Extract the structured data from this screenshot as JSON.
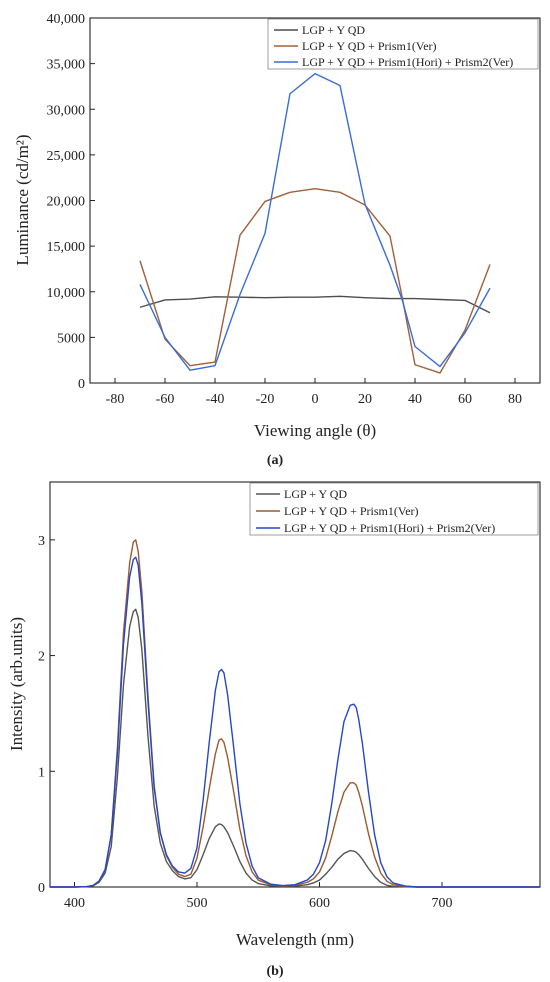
{
  "chart_data": [
    {
      "type": "line",
      "caption": "(a)",
      "xlabel": "Viewing angle (θ)",
      "ylabel": "Luminance (cd/m²)",
      "xlim": [
        -90,
        90
      ],
      "ylim": [
        0,
        40000
      ],
      "xticks": [
        -80,
        -60,
        -40,
        -20,
        0,
        20,
        40,
        60,
        80
      ],
      "yticks": [
        0,
        5000,
        10000,
        15000,
        20000,
        25000,
        30000,
        35000,
        40000
      ],
      "ytick_labels": [
        "0",
        "5000",
        "10,000",
        "15,000",
        "20,000",
        "25,000",
        "30,000",
        "35,000",
        "40,000"
      ],
      "legend_position": "top-right",
      "grid": false,
      "x": [
        -70,
        -60,
        -50,
        -40,
        -30,
        -20,
        -10,
        0,
        10,
        20,
        30,
        35,
        40,
        50,
        60,
        70
      ],
      "series": [
        {
          "name": "LGP + Y QD",
          "color": "#4d4d4d",
          "values": [
            8300,
            9100,
            9200,
            9450,
            9400,
            9350,
            9400,
            9400,
            9500,
            9350,
            9250,
            9250,
            9250,
            9150,
            9050,
            7700
          ]
        },
        {
          "name": "LGP + Y QD + Prism1(Ver)",
          "color": "#a0603a",
          "values": [
            13400,
            4800,
            1900,
            2300,
            16200,
            19900,
            20900,
            21300,
            20900,
            19500,
            16100,
            9200,
            2000,
            1100,
            5800,
            13000
          ]
        },
        {
          "name": "LGP + Y QD + Prism1(Hori) + Prism2(Ver)",
          "color": "#3a6cd6",
          "values": [
            10800,
            5000,
            1400,
            1900,
            9700,
            16400,
            31700,
            33900,
            32600,
            19600,
            12900,
            9000,
            4000,
            1800,
            5500,
            10400
          ]
        }
      ]
    },
    {
      "type": "line",
      "caption": "(b)",
      "xlabel": "Wavelength (nm)",
      "ylabel": "Intensity (arb.units)",
      "xlim": [
        380,
        780
      ],
      "ylim": [
        0,
        3.5
      ],
      "xticks": [
        400,
        500,
        600,
        700
      ],
      "yticks": [
        0,
        1,
        2,
        3
      ],
      "legend_position": "top-right",
      "grid": false,
      "x": [
        380,
        400,
        410,
        415,
        420,
        425,
        430,
        435,
        440,
        445,
        448,
        450,
        452,
        455,
        460,
        465,
        470,
        475,
        480,
        485,
        490,
        495,
        500,
        505,
        510,
        515,
        518,
        520,
        522,
        525,
        530,
        535,
        540,
        545,
        550,
        560,
        570,
        580,
        590,
        595,
        600,
        605,
        610,
        615,
        620,
        625,
        628,
        630,
        632,
        635,
        640,
        645,
        650,
        655,
        660,
        670,
        680,
        700,
        780
      ],
      "series": [
        {
          "name": "LGP + Y QD",
          "color": "#555555",
          "values": [
            0,
            0,
            0.003,
            0.01,
            0.04,
            0.12,
            0.35,
            0.95,
            1.75,
            2.25,
            2.38,
            2.4,
            2.33,
            2.05,
            1.3,
            0.7,
            0.38,
            0.22,
            0.14,
            0.09,
            0.07,
            0.08,
            0.15,
            0.28,
            0.42,
            0.52,
            0.545,
            0.54,
            0.52,
            0.47,
            0.35,
            0.22,
            0.12,
            0.06,
            0.03,
            0.01,
            0.005,
            0.008,
            0.02,
            0.035,
            0.06,
            0.11,
            0.17,
            0.24,
            0.29,
            0.315,
            0.31,
            0.3,
            0.28,
            0.24,
            0.16,
            0.09,
            0.04,
            0.015,
            0.006,
            0.002,
            0,
            0,
            0
          ]
        },
        {
          "name": "LGP + Y QD + Prism1(Ver)",
          "color": "#9c5a2e",
          "values": [
            0,
            0,
            0.004,
            0.012,
            0.05,
            0.15,
            0.45,
            1.2,
            2.2,
            2.8,
            2.98,
            3.0,
            2.9,
            2.55,
            1.65,
            0.88,
            0.47,
            0.27,
            0.17,
            0.11,
            0.09,
            0.11,
            0.25,
            0.52,
            0.85,
            1.15,
            1.27,
            1.28,
            1.25,
            1.12,
            0.82,
            0.5,
            0.27,
            0.13,
            0.06,
            0.02,
            0.01,
            0.015,
            0.04,
            0.07,
            0.13,
            0.25,
            0.44,
            0.65,
            0.82,
            0.9,
            0.9,
            0.88,
            0.82,
            0.7,
            0.46,
            0.26,
            0.12,
            0.05,
            0.02,
            0.005,
            0,
            0,
            0
          ]
        },
        {
          "name": "LGP + Y QD + Prism1(Hori) + Prism2(Ver)",
          "color": "#2447c9",
          "values": [
            0,
            0,
            0.004,
            0.012,
            0.05,
            0.15,
            0.45,
            1.15,
            2.1,
            2.68,
            2.83,
            2.85,
            2.78,
            2.45,
            1.6,
            0.86,
            0.47,
            0.28,
            0.18,
            0.13,
            0.12,
            0.16,
            0.34,
            0.75,
            1.25,
            1.7,
            1.86,
            1.88,
            1.85,
            1.66,
            1.2,
            0.72,
            0.38,
            0.18,
            0.08,
            0.025,
            0.012,
            0.02,
            0.06,
            0.11,
            0.21,
            0.4,
            0.72,
            1.1,
            1.43,
            1.57,
            1.58,
            1.55,
            1.45,
            1.24,
            0.82,
            0.45,
            0.21,
            0.09,
            0.035,
            0.008,
            0,
            0,
            0
          ]
        }
      ]
    }
  ]
}
